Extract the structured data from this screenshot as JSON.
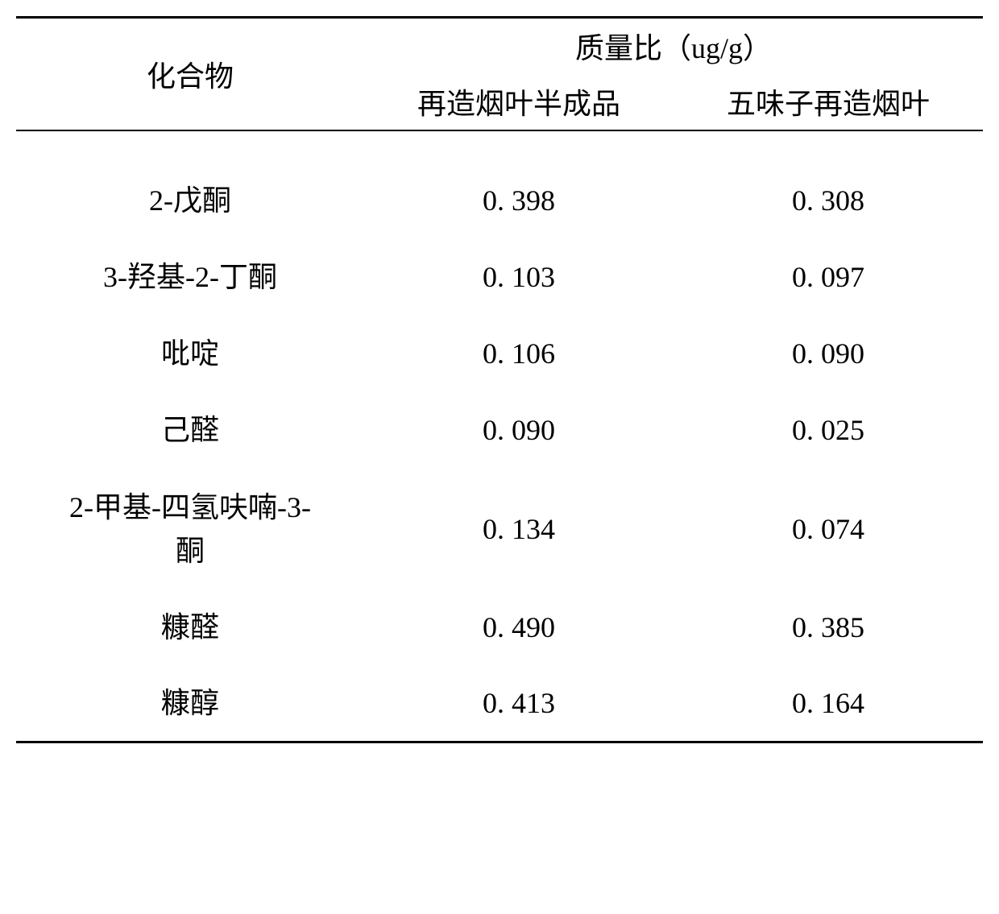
{
  "table": {
    "headers": {
      "compound": "化合物",
      "group_header": "质量比（ug/g）",
      "col1": "再造烟叶半成品",
      "col2": "五味子再造烟叶"
    },
    "rows": [
      {
        "compound": "2-戊酮",
        "val1": "0. 398",
        "val2": "0. 308",
        "multiline": false
      },
      {
        "compound": "3-羟基-2-丁酮",
        "val1": "0. 103",
        "val2": "0. 097",
        "multiline": false
      },
      {
        "compound": "吡啶",
        "val1": "0. 106",
        "val2": "0. 090",
        "multiline": false
      },
      {
        "compound": "己醛",
        "val1": "0. 090",
        "val2": "0. 025",
        "multiline": false
      },
      {
        "compound": "2-甲基-四氢呋喃-3-酮",
        "val1": "0. 134",
        "val2": "0. 074",
        "multiline": true
      },
      {
        "compound": "糠醛",
        "val1": "0. 490",
        "val2": "0. 385",
        "multiline": false
      },
      {
        "compound": "糠醇",
        "val1": "0. 413",
        "val2": "0. 164",
        "multiline": false
      }
    ],
    "style": {
      "background_color": "#ffffff",
      "text_color": "#000000",
      "border_color": "#000000",
      "top_border_width": 3,
      "header_border_width": 2,
      "bottom_border_width": 3,
      "font_size_header": 36,
      "font_size_body": 36,
      "font_family_cjk": "SimSun",
      "font_family_numeric": "Times New Roman",
      "col_widths": [
        "36%",
        "32%",
        "32%"
      ]
    }
  }
}
